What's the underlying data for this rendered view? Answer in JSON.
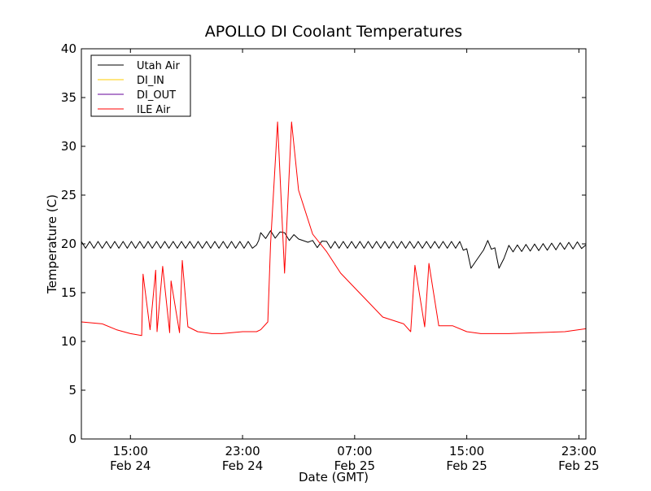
{
  "chart_data": {
    "type": "line",
    "title": "APOLLO DI Coolant Temperatures",
    "xlabel": "Date (GMT)",
    "ylabel": "Temperature (C)",
    "xlim_hours": [
      11.5,
      47.5
    ],
    "ylim": [
      0,
      40
    ],
    "grid": false,
    "legend_position": "top-left",
    "y_ticks": [
      0,
      5,
      10,
      15,
      20,
      25,
      30,
      35,
      40
    ],
    "x_ticks": [
      {
        "hour": 15,
        "time": "15:00",
        "date": "Feb 24"
      },
      {
        "hour": 23,
        "time": "23:00",
        "date": "Feb 24"
      },
      {
        "hour": 31,
        "time": "07:00",
        "date": "Feb 25"
      },
      {
        "hour": 39,
        "time": "15:00",
        "date": "Feb 25"
      },
      {
        "hour": 47,
        "time": "23:00",
        "date": "Feb 25"
      }
    ],
    "series": [
      {
        "name": "Utah Air",
        "color": "#000000",
        "note": "oscillates ~19.5-20.3 C with a brief bump to ~21 C around hour 24-27",
        "x": [
          11.5,
          24.0,
          24.3,
          25.0,
          26.0,
          27.0,
          28.0,
          29.0,
          38.5,
          39.0,
          39.3,
          40.5,
          41.0,
          41.3,
          42.0,
          47.5
        ],
        "y": [
          19.9,
          19.9,
          20.8,
          21.0,
          20.8,
          20.5,
          20.0,
          19.9,
          19.9,
          19.5,
          17.5,
          20.0,
          19.6,
          17.5,
          19.5,
          19.9
        ]
      },
      {
        "name": "DI_IN",
        "color": "#ffcc00",
        "x": [],
        "y": []
      },
      {
        "name": "DI_OUT",
        "color": "#660099",
        "x": [],
        "y": []
      },
      {
        "name": "ILE Air",
        "color": "#ff0000",
        "x": [
          11.5,
          13.0,
          14.0,
          15.0,
          15.8,
          15.9,
          16.4,
          16.8,
          16.9,
          17.3,
          17.8,
          17.9,
          18.5,
          18.7,
          19.1,
          19.8,
          20.8,
          21.5,
          23.0,
          24.0,
          24.3,
          24.8,
          25.0,
          25.5,
          26.0,
          26.5,
          27.0,
          28.0,
          29.0,
          30.0,
          31.0,
          32.0,
          33.0,
          34.5,
          35.0,
          35.3,
          36.0,
          36.3,
          37.0,
          38.0,
          39.0,
          40.0,
          42.0,
          44.0,
          46.0,
          47.5
        ],
        "y": [
          12.0,
          11.8,
          11.2,
          10.8,
          10.6,
          16.9,
          11.2,
          17.3,
          11.0,
          17.7,
          10.9,
          16.2,
          10.9,
          18.3,
          11.5,
          11.0,
          10.8,
          10.8,
          11.0,
          11.0,
          11.2,
          12.0,
          20.0,
          32.5,
          17.0,
          32.5,
          25.5,
          21.0,
          19.2,
          17.0,
          15.5,
          14.0,
          12.5,
          11.8,
          11.0,
          17.8,
          11.5,
          18.0,
          11.6,
          11.6,
          11.0,
          10.8,
          10.8,
          10.9,
          11.0,
          11.3
        ]
      }
    ]
  }
}
